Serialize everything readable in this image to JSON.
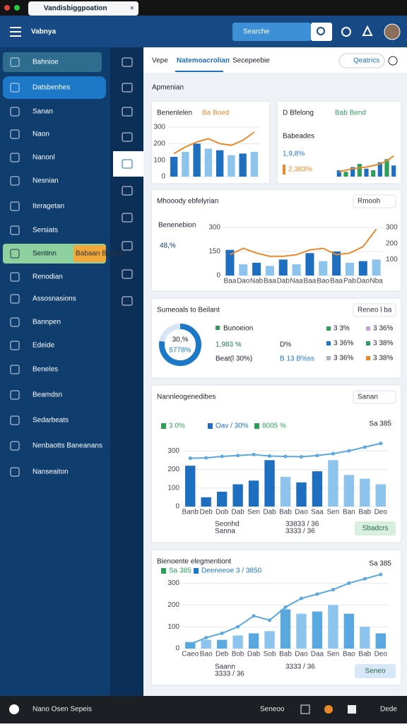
{
  "browser": {
    "tab": "Vandisbiggpoation",
    "close": "×"
  },
  "header": {
    "app": "Vabnya",
    "search": "Searche"
  },
  "sidebar": {
    "items": [
      "Bahnioe",
      "Datsbenhes",
      "Sanan",
      "Naon",
      "Nanonl",
      "Nesnian",
      "Iteragetan",
      "Sersiats",
      "Sentinn",
      "Renodian",
      "Assosnasions",
      "Bannpen",
      "Edeide",
      "Beneles",
      "Beamdsn",
      "Sedarbeats",
      "Nenbaotts Baneanans",
      "Nanseaiton"
    ],
    "badge": "Babaan Baas lo"
  },
  "tabs": [
    "Vepe",
    "Natemoacrolian",
    "Secepeebie"
  ],
  "tab_action": "Qeatrics",
  "section": "Apmenian",
  "cards": [
    {
      "title": "Benenlelen",
      "tag": "Ba Boed",
      "chart": {
        "type": "combo",
        "bars": {
          "values": [
            120,
            150,
            200,
            170,
            160,
            130,
            140,
            150
          ],
          "colors": [
            "#1e6fc0",
            "#8cc4ee"
          ]
        },
        "line": {
          "values": [
            140,
            180,
            210,
            230,
            200,
            190,
            220,
            270
          ],
          "color": "#e8892b"
        },
        "ylim": [
          0,
          300
        ],
        "yticks": [
          0,
          100,
          200,
          300
        ]
      }
    },
    {
      "title": "D Bfelong",
      "tag": "Bab Bend",
      "label": "Babeades",
      "kpi": "1,9,8%",
      "kpi2": "2,383%",
      "chart": {
        "type": "combo",
        "bars": {
          "values": [
            40,
            30,
            60,
            80,
            50,
            40,
            90,
            110,
            70
          ],
          "colors": [
            "#1e6fc0",
            "#2e9e5b"
          ]
        },
        "line": {
          "values": [
            30,
            40,
            50,
            55,
            60,
            70,
            80,
            100,
            130
          ],
          "color": "#e8892b"
        },
        "ylim": [
          0,
          200
        ]
      }
    },
    {
      "title": "Mhooody ebfelyrian",
      "menu": "Rmooh",
      "label": "Benenebion",
      "kpi": "48,%",
      "chart": {
        "type": "combo",
        "categories": [
          "Baa",
          "Dao",
          "Nab",
          "Baa",
          "Dab",
          "Naa",
          "Baa",
          "Bao",
          "Baa",
          "Pab",
          "Dao",
          "Nba"
        ],
        "bars": {
          "values": [
            160,
            70,
            80,
            60,
            100,
            70,
            140,
            90,
            150,
            80,
            90,
            100
          ],
          "colors": [
            "#1e6fc0",
            "#8cc4ee"
          ]
        },
        "line": {
          "values": [
            130,
            170,
            140,
            120,
            120,
            130,
            160,
            170,
            130,
            140,
            180,
            290
          ],
          "color": "#e8892b"
        },
        "ylim": [
          0,
          300
        ],
        "yticks": [
          0,
          150,
          300
        ],
        "y2lim": [
          0,
          300
        ],
        "y2ticks": [
          100,
          200,
          300
        ]
      }
    },
    {
      "title": "Sumeoals to Beilant",
      "menu": "Reneo l ba",
      "center": "30,%",
      "center2": "5778%",
      "kpi_label": "Bunoeion",
      "kpi": "1,983 %",
      "sub": "D%",
      "sub2": "Beat(l 30%)",
      "sub3": "B 13 B%ss",
      "legend": [
        {
          "label": "3 3%",
          "color": "#2e9e5b"
        },
        {
          "label": "3 36%",
          "color": "#c9a3d6"
        },
        {
          "label": "3 36%",
          "color": "#1e78c8"
        },
        {
          "label": "3 38%",
          "color": "#2e9e5b"
        },
        {
          "label": "3 36%",
          "color": "#aab4c0"
        },
        {
          "label": "3 38%",
          "color": "#e8892b"
        }
      ],
      "chart": {
        "type": "donut",
        "values": [
          78,
          22
        ],
        "colors": [
          "#1e78c8",
          "#d6e6f5"
        ]
      }
    },
    {
      "title": "Nannleogenedibes",
      "menu": "Sanan",
      "legend": [
        {
          "label": "3 0%",
          "color": "#2e9e5b"
        },
        {
          "label": "Oav / 30%",
          "color": "#1e6fc0"
        },
        {
          "label": "8005 %",
          "color": "#2e9e5b"
        }
      ],
      "right": "Sa 385",
      "foot": [
        "Seonhd",
        "33833 / 36",
        "Sanna",
        "3333 / 36"
      ],
      "button": "Sbadcrs",
      "chart": {
        "type": "combo",
        "categories": [
          "Banb",
          "Deb",
          "Dob",
          "Dab",
          "Sen",
          "Dab",
          "Bab",
          "Dao",
          "Saa",
          "Sen",
          "Ban",
          "Bab",
          "Deo"
        ],
        "bars": {
          "values": [
            220,
            50,
            80,
            120,
            140,
            250,
            160,
            130,
            190,
            250,
            170,
            150,
            120
          ],
          "colors": [
            "#1e6fc0",
            "#1e6fc0",
            "#1e6fc0",
            "#1e6fc0",
            "#1e6fc0",
            "#1e6fc0",
            "#8cc4ee",
            "#1e6fc0",
            "#1e6fc0",
            "#8cc4ee",
            "#8cc4ee",
            "#8cc4ee",
            "#8cc4ee"
          ]
        },
        "line": {
          "values": [
            260,
            262,
            270,
            275,
            280,
            272,
            270,
            268,
            275,
            285,
            300,
            320,
            340
          ],
          "color": "#5aa8e0",
          "dots": true
        },
        "ylim": [
          0,
          350
        ],
        "yticks": [
          0,
          100,
          200,
          300
        ]
      }
    },
    {
      "title": "Bienoente elegmentiont",
      "legend": [
        {
          "label": "Sa 385",
          "color": "#2e9e5b"
        },
        {
          "label": "Deeneeoe 3 / 3850",
          "color": "#1e78c8"
        }
      ],
      "right": "Sa 385",
      "foot": [
        "Saann",
        "3333 / 36",
        "3333 / 36"
      ],
      "button": "Seneo",
      "chart": {
        "type": "combo",
        "categories": [
          "Caeo",
          "Bao",
          "Deb",
          "Bob",
          "Dab",
          "Sob",
          "Bab",
          "Dao",
          "Daa",
          "Sen",
          "Bao",
          "Bab",
          "Deo"
        ],
        "bars": {
          "values": [
            30,
            40,
            40,
            60,
            70,
            80,
            180,
            160,
            170,
            200,
            160,
            100,
            70
          ],
          "colors": [
            "#5aa8e0",
            "#8cc4ee"
          ]
        },
        "line": {
          "values": [
            20,
            50,
            70,
            100,
            150,
            130,
            190,
            230,
            250,
            270,
            300,
            320,
            340
          ],
          "color": "#5aa8e0",
          "dots": true
        },
        "ylim": [
          0,
          350
        ],
        "yticks": [
          0,
          100,
          200,
          300
        ]
      }
    }
  ],
  "footer": {
    "left": "Nano Osen Sepeis",
    "mid": "Seneoo",
    "right": "Dede"
  }
}
